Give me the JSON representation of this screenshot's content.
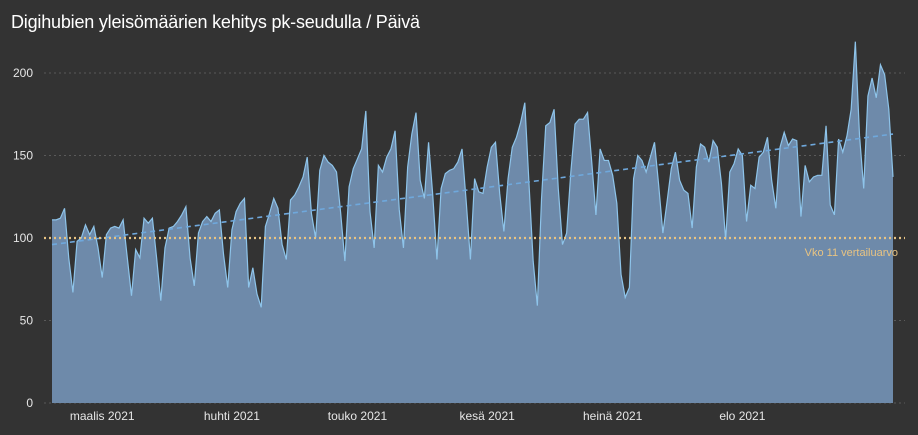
{
  "chart_data": {
    "type": "area",
    "title": "Digihubien yleisömäärien kehitys pk-seudulla / Päivä",
    "xlabel": "",
    "ylabel": "",
    "ylim": [
      0,
      220
    ],
    "y_ticks": [
      0,
      50,
      100,
      150,
      200
    ],
    "x_ticks": [
      "maalis 2021",
      "huhti 2021",
      "touko 2021",
      "kesä 2021",
      "heinä 2021",
      "elo 2021"
    ],
    "grid": "horizontal dotted",
    "series": [
      {
        "values": [
          111,
          111,
          112,
          118,
          88,
          67,
          98,
          100,
          108,
          102,
          107,
          94,
          76,
          102,
          106,
          107,
          106,
          111,
          88,
          65,
          93,
          88,
          112,
          109,
          112,
          88,
          62,
          94,
          106,
          107,
          110,
          114,
          119,
          88,
          71,
          103,
          110,
          113,
          110,
          115,
          117,
          90,
          70,
          105,
          116,
          121,
          124,
          70,
          82,
          66,
          58,
          107,
          115,
          124,
          118,
          96,
          87,
          123,
          126,
          131,
          137,
          149,
          115,
          100,
          141,
          150,
          146,
          144,
          140,
          115,
          86,
          131,
          142,
          148,
          154,
          177,
          116,
          94,
          144,
          140,
          149,
          154,
          165,
          117,
          94,
          143,
          163,
          176,
          135,
          124,
          158,
          126,
          87,
          130,
          139,
          141,
          142,
          146,
          154,
          122,
          87,
          136,
          128,
          127,
          143,
          155,
          158,
          127,
          104,
          136,
          155,
          161,
          170,
          182,
          133,
          86,
          59,
          124,
          168,
          170,
          178,
          130,
          96,
          103,
          140,
          169,
          172,
          172,
          176,
          146,
          114,
          154,
          147,
          147,
          138,
          121,
          78,
          64,
          70,
          136,
          150,
          147,
          140,
          149,
          158,
          132,
          103,
          122,
          142,
          152,
          135,
          129,
          127,
          106,
          143,
          157,
          155,
          146,
          159,
          155,
          133,
          99,
          140,
          145,
          154,
          150,
          110,
          132,
          130,
          149,
          152,
          161,
          135,
          118,
          155,
          164,
          156,
          160,
          159,
          113,
          144,
          134,
          137,
          138,
          138,
          168,
          120,
          114,
          160,
          152,
          162,
          178,
          219,
          162,
          130,
          186,
          197,
          185,
          205,
          199,
          178,
          137
        ],
        "color": "#8ec4ea"
      }
    ],
    "trend": {
      "start": 96,
      "end": 163,
      "style": "dashed",
      "color": "#6fa8dc"
    },
    "reference": {
      "value": 100,
      "label": "Vko 11 vertailuarvo",
      "color": "#e8c382"
    },
    "fill_color": "#6e8aaa",
    "line_color": "#8ec4ea",
    "grid_color": "#5a5a5a",
    "text_color": "#e6e6e6"
  }
}
